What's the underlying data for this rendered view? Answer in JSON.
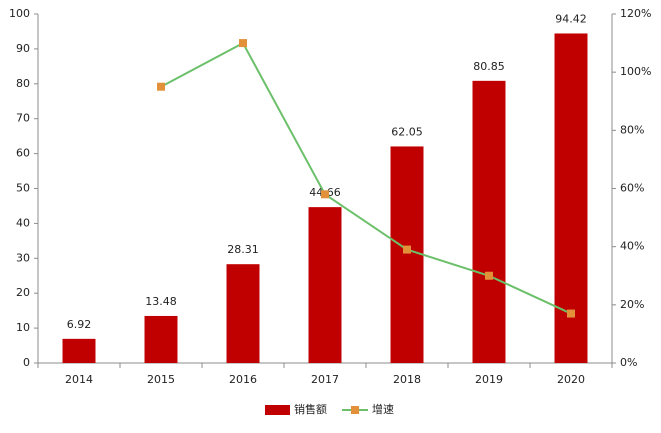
{
  "chart_data": {
    "type": "bar_line",
    "categories": [
      "2014",
      "2015",
      "2016",
      "2017",
      "2018",
      "2019",
      "2020"
    ],
    "series": [
      {
        "name": "销售额",
        "color": "#c00000",
        "values": [
          6.92,
          13.48,
          28.31,
          44.66,
          62.05,
          80.85,
          94.42
        ]
      },
      {
        "name": "增速",
        "color": "#6cc06a",
        "marker_color": "#e3903a",
        "axis": "y2",
        "values": [
          null,
          95,
          110,
          58,
          39,
          30,
          17
        ]
      }
    ],
    "ylim": [
      0,
      100
    ],
    "yticks": [
      0,
      10,
      20,
      30,
      40,
      50,
      60,
      70,
      80,
      90,
      100
    ],
    "y2lim": [
      0,
      120
    ],
    "y2ticks": [
      {
        "value": 0,
        "label": "0%"
      },
      {
        "value": 20,
        "label": "20%"
      },
      {
        "value": 40,
        "label": "40%"
      },
      {
        "value": 60,
        "label": "60%"
      },
      {
        "value": 80,
        "label": "80%"
      },
      {
        "value": 100,
        "label": "100%"
      },
      {
        "value": 120,
        "label": "120%"
      }
    ],
    "legend": "bottom"
  }
}
